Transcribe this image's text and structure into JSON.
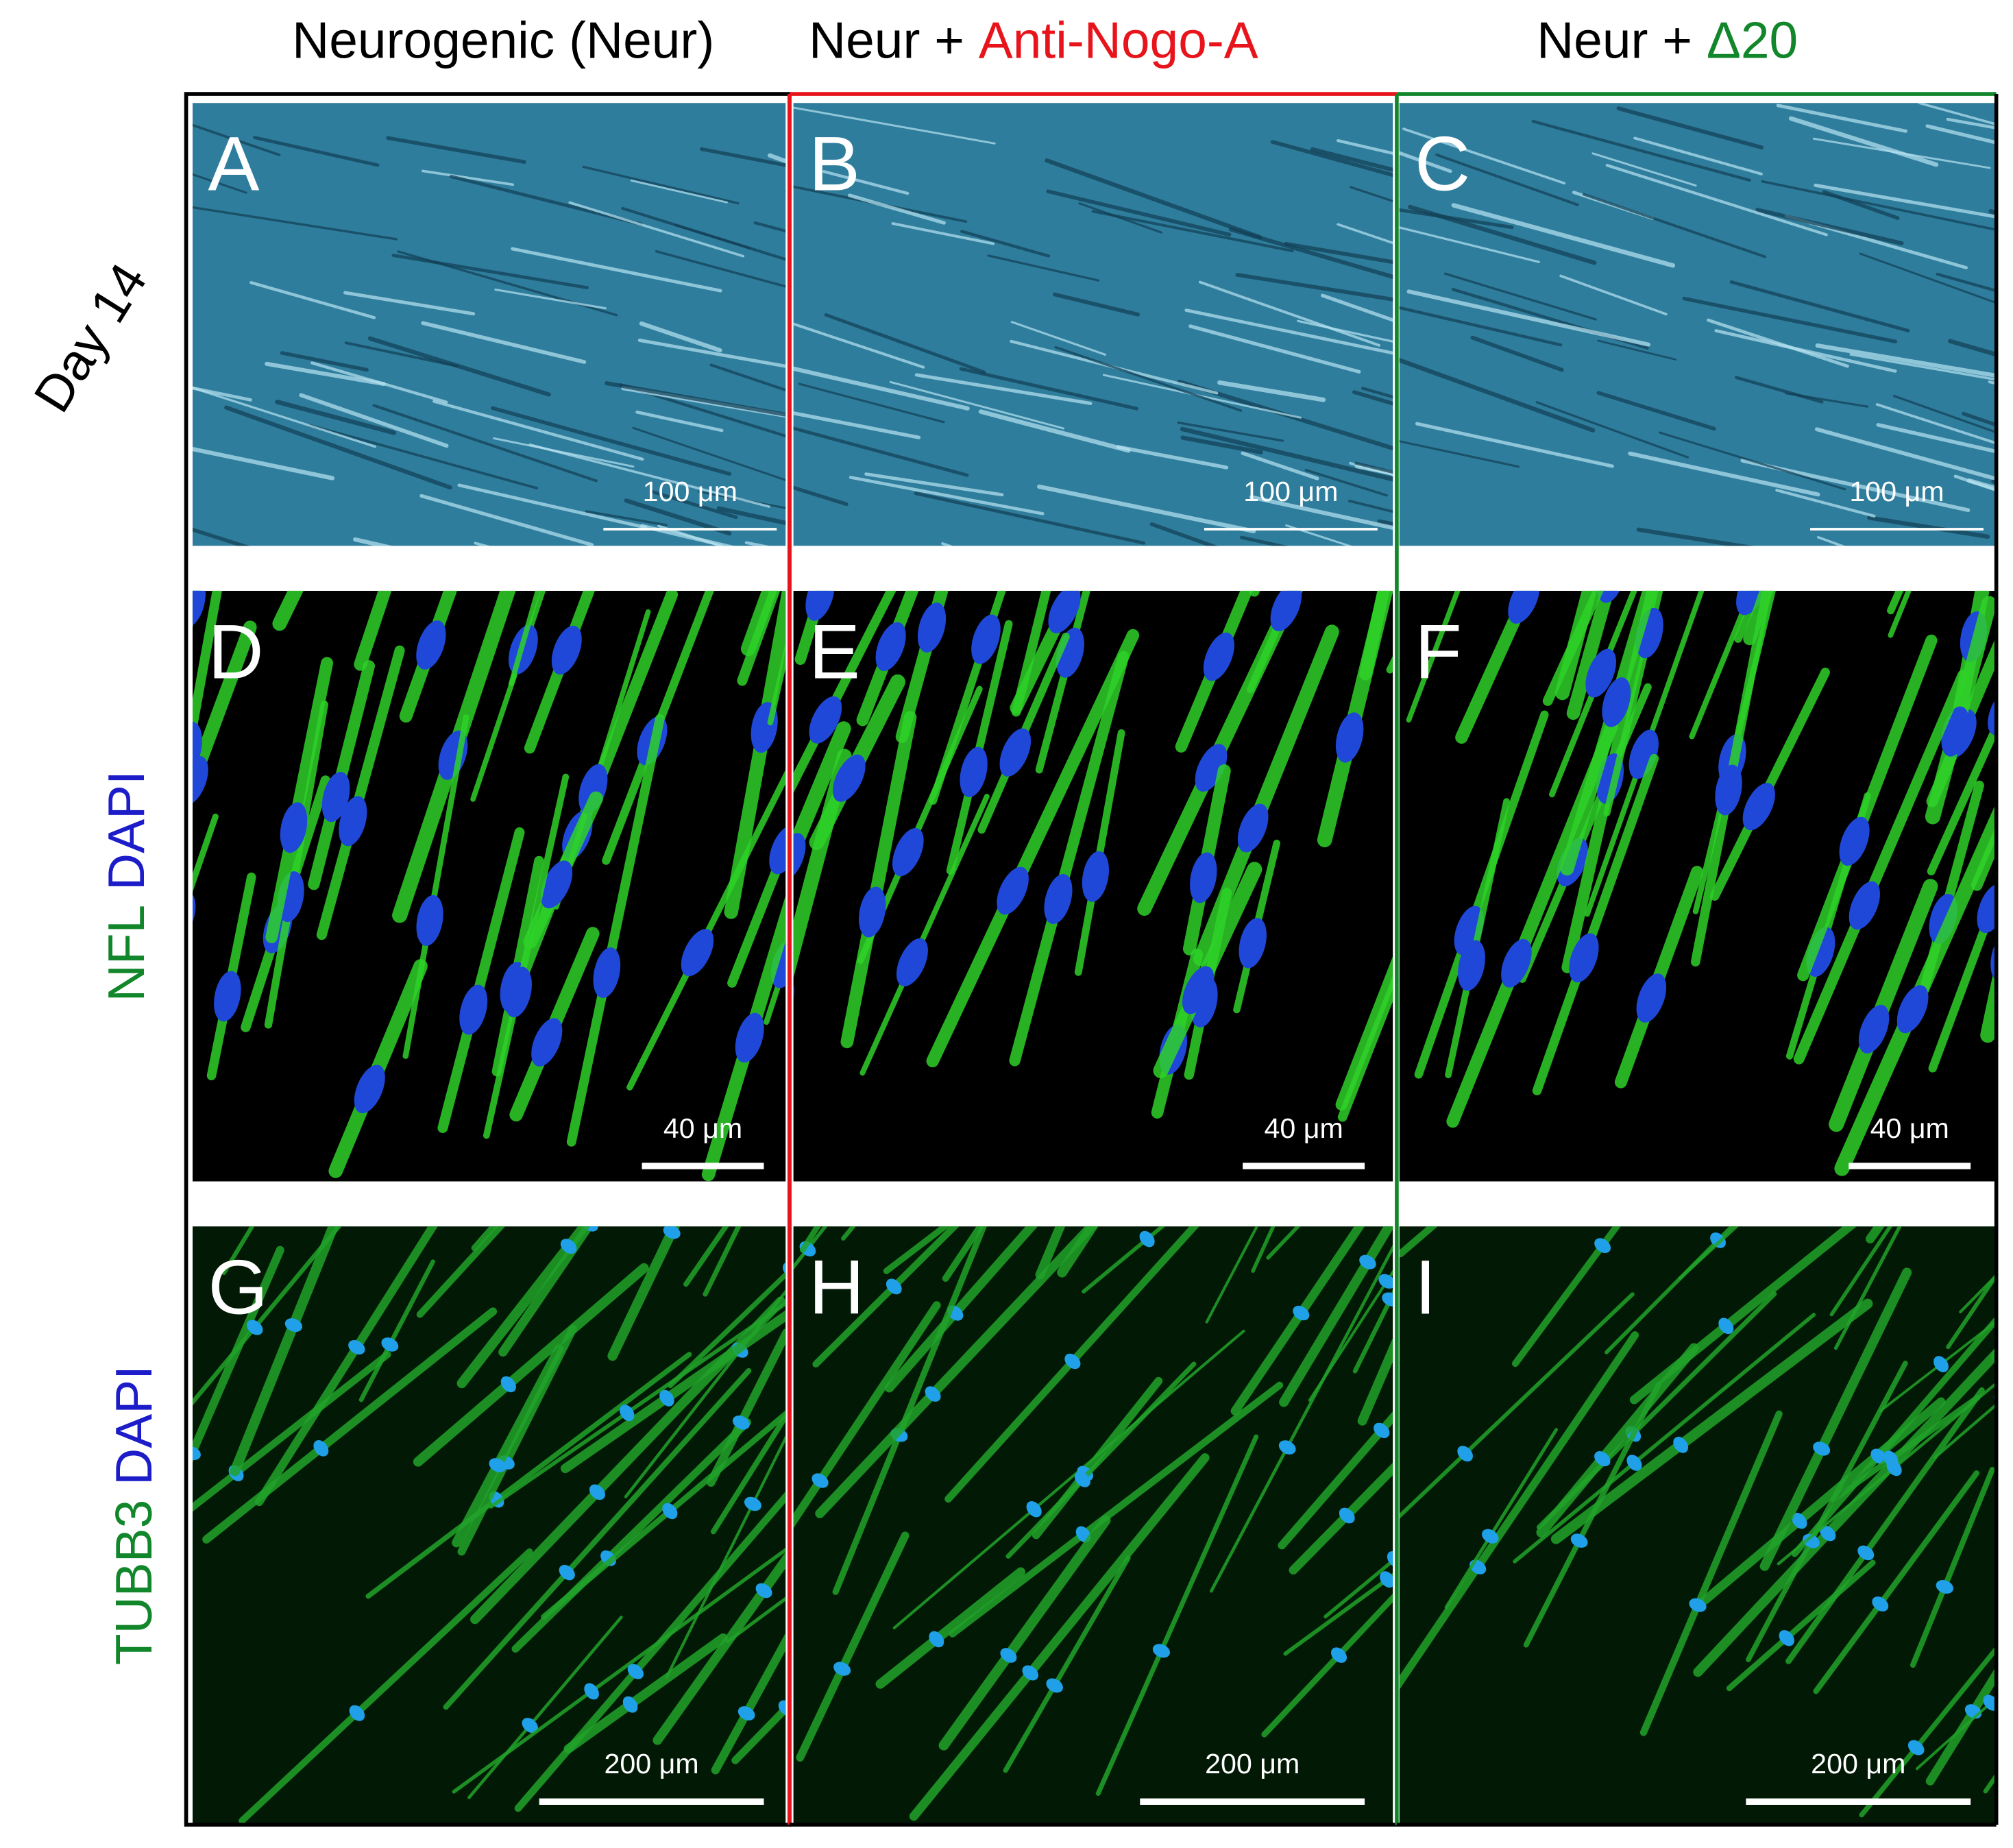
{
  "columns": [
    {
      "title": "Neurogenic (Neur)"
    },
    {
      "title_prefix": "Neur +",
      "title_highlight": "Anti-Nogo-A"
    },
    {
      "title_prefix": "Neur +",
      "title_highlight": "Δ20"
    }
  ],
  "rows": [
    {
      "label": "Day 14"
    },
    {
      "label_parts": [
        "NFL",
        "DAPI"
      ]
    },
    {
      "label_parts": [
        "TUBB3",
        "DAPI"
      ]
    }
  ],
  "panels": [
    {
      "letter": "A",
      "scale_bar": "100 μm"
    },
    {
      "letter": "B",
      "scale_bar": "100 μm"
    },
    {
      "letter": "C",
      "scale_bar": "100 μm"
    },
    {
      "letter": "D",
      "scale_bar": "40 μm"
    },
    {
      "letter": "E",
      "scale_bar": "40 μm"
    },
    {
      "letter": "F",
      "scale_bar": "40 μm"
    },
    {
      "letter": "G",
      "scale_bar": "200 μm"
    },
    {
      "letter": "H",
      "scale_bar": "200 μm"
    },
    {
      "letter": "I",
      "scale_bar": "200 μm"
    }
  ]
}
